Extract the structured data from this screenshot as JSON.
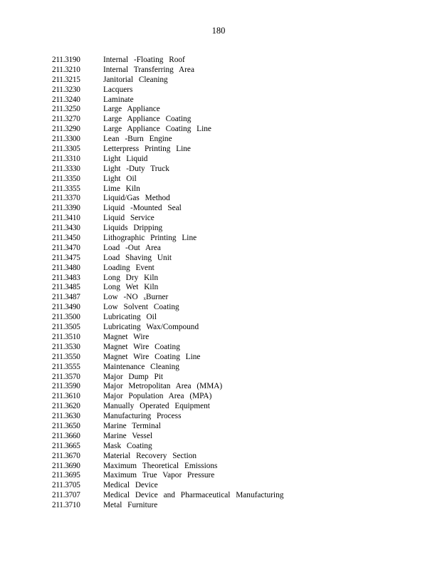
{
  "page_number": "180",
  "entries": [
    {
      "code": "211.3190",
      "term": "Internal  -Floating  Roof"
    },
    {
      "code": "211.3210",
      "term": "Internal  Transferring   Area"
    },
    {
      "code": "211.3215",
      "term": "Janitorial  Cleaning"
    },
    {
      "code": "211.3230",
      "term": "Lacquers"
    },
    {
      "code": "211.3240",
      "term": "Laminate"
    },
    {
      "code": "211.3250",
      "term": "Large  Appliance"
    },
    {
      "code": "211.3270",
      "term": "Large  Appliance  Coating"
    },
    {
      "code": "211.3290",
      "term": "Large  Appliance  Coating  Line"
    },
    {
      "code": "211.3300",
      "term": "Lean -Burn  Engine"
    },
    {
      "code": "211.3305",
      "term": "Letterpress   Printing  Line"
    },
    {
      "code": "211.3310",
      "term": "Light  Liquid"
    },
    {
      "code": "211.3330",
      "term": "Light -Duty  Truck"
    },
    {
      "code": "211.3350",
      "term": "Light  Oil"
    },
    {
      "code": "211.3355",
      "term": "Lime  Kiln"
    },
    {
      "code": "211.3370",
      "term": "Liquid/Gas  Method"
    },
    {
      "code": "211.3390",
      "term": "Liquid -Mounted   Seal"
    },
    {
      "code": "211.3410",
      "term": "Liquid  Service"
    },
    {
      "code": "211.3430",
      "term": "Liquids  Dripping"
    },
    {
      "code": "211.3450",
      "term": "Lithographic   Printing  Line"
    },
    {
      "code": "211.3470",
      "term": "Load -Out  Area"
    },
    {
      "code": "211.3475",
      "term": "Load  Shaving  Unit"
    },
    {
      "code": "211.3480",
      "term": "Loading  Event"
    },
    {
      "code": "211.3483",
      "term": "Long  Dry  Kiln"
    },
    {
      "code": "211.3485",
      "term": "Long  Wet  Kiln"
    },
    {
      "code": "211.3487",
      "term": "Low -NO ",
      "sub": "x",
      "after": "Burner"
    },
    {
      "code": "211.3490",
      "term": "Low  Solvent  Coating"
    },
    {
      "code": "211.3500",
      "term": "Lubricating  Oil"
    },
    {
      "code": "211.3505",
      "term": "Lubricating  Wax/Compound"
    },
    {
      "code": "211.3510",
      "term": "Magnet  Wire"
    },
    {
      "code": "211.3530",
      "term": "Magnet  Wire  Coating"
    },
    {
      "code": "211.3550",
      "term": "Magnet  Wire  Coating  Line"
    },
    {
      "code": "211.3555",
      "term": "Maintenance   Cleaning"
    },
    {
      "code": "211.3570",
      "term": "Major  Dump  Pit"
    },
    {
      "code": "211.3590",
      "term": "Major  Metropolitan   Area  (MMA)"
    },
    {
      "code": "211.3610",
      "term": "Major  Population  Area  (MPA)"
    },
    {
      "code": "211.3620",
      "term": "Manually  Operated  Equipment"
    },
    {
      "code": "211.3630",
      "term": "Manufacturing   Process"
    },
    {
      "code": "211.3650",
      "term": "Marine  Terminal"
    },
    {
      "code": "211.3660",
      "term": "Marine  Vessel"
    },
    {
      "code": "211.3665",
      "term": "Mask  Coating"
    },
    {
      "code": "211.3670",
      "term": "Material  Recovery  Section"
    },
    {
      "code": "211.3690",
      "term": "Maximum   Theoretical   Emissions"
    },
    {
      "code": "211.3695",
      "term": "Maximum   True  Vapor  Pressure"
    },
    {
      "code": "211.3705",
      "term": "Medical  Device"
    },
    {
      "code": "211.3707",
      "term": "Medical  Device  and  Pharmaceutical    Manufacturing"
    },
    {
      "code": "211.3710",
      "term": "Metal  Furniture"
    }
  ]
}
